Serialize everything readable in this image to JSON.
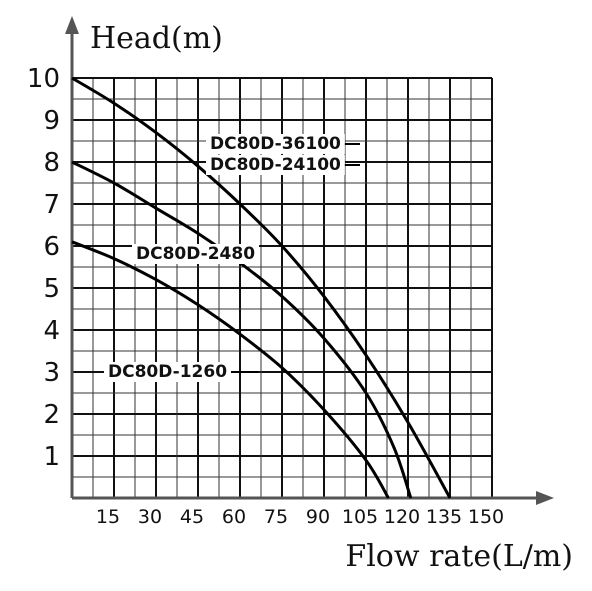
{
  "chart_data": {
    "type": "line",
    "xlabel": "Flow rate(L/m)",
    "ylabel": "Head(m)",
    "xlim": [
      0,
      150
    ],
    "ylim": [
      0,
      10
    ],
    "x_ticks": [
      "15",
      "30",
      "45",
      "60",
      "75",
      "90",
      "105",
      "120",
      "135",
      "150"
    ],
    "y_ticks": [
      "1",
      "2",
      "3",
      "4",
      "5",
      "6",
      "7",
      "8",
      "9",
      "10"
    ],
    "grid": true,
    "series": [
      {
        "name": "DC80D-36100",
        "points": [
          [
            0,
            10
          ],
          [
            15,
            9.4
          ],
          [
            30,
            8.7
          ],
          [
            45,
            7.9
          ],
          [
            60,
            7.0
          ],
          [
            75,
            6.0
          ],
          [
            90,
            4.8
          ],
          [
            105,
            3.4
          ],
          [
            120,
            1.8
          ],
          [
            135,
            0
          ]
        ]
      },
      {
        "name": "DC80D-24100",
        "points": [
          [
            0,
            10
          ],
          [
            15,
            9.4
          ],
          [
            30,
            8.7
          ],
          [
            45,
            7.9
          ],
          [
            60,
            7.0
          ],
          [
            75,
            6.0
          ],
          [
            90,
            4.8
          ],
          [
            105,
            3.4
          ],
          [
            120,
            1.8
          ],
          [
            135,
            0
          ]
        ]
      },
      {
        "name": "DC80D-2480",
        "points": [
          [
            0,
            8
          ],
          [
            15,
            7.5
          ],
          [
            30,
            6.9
          ],
          [
            45,
            6.3
          ],
          [
            60,
            5.6
          ],
          [
            75,
            4.8
          ],
          [
            90,
            3.8
          ],
          [
            105,
            2.5
          ],
          [
            115,
            1.2
          ],
          [
            121,
            0
          ]
        ]
      },
      {
        "name": "DC80D-1260",
        "points": [
          [
            0,
            6.1
          ],
          [
            15,
            5.7
          ],
          [
            30,
            5.2
          ],
          [
            45,
            4.6
          ],
          [
            60,
            3.9
          ],
          [
            75,
            3.1
          ],
          [
            90,
            2.1
          ],
          [
            105,
            0.9
          ],
          [
            113,
            0
          ]
        ]
      }
    ]
  }
}
